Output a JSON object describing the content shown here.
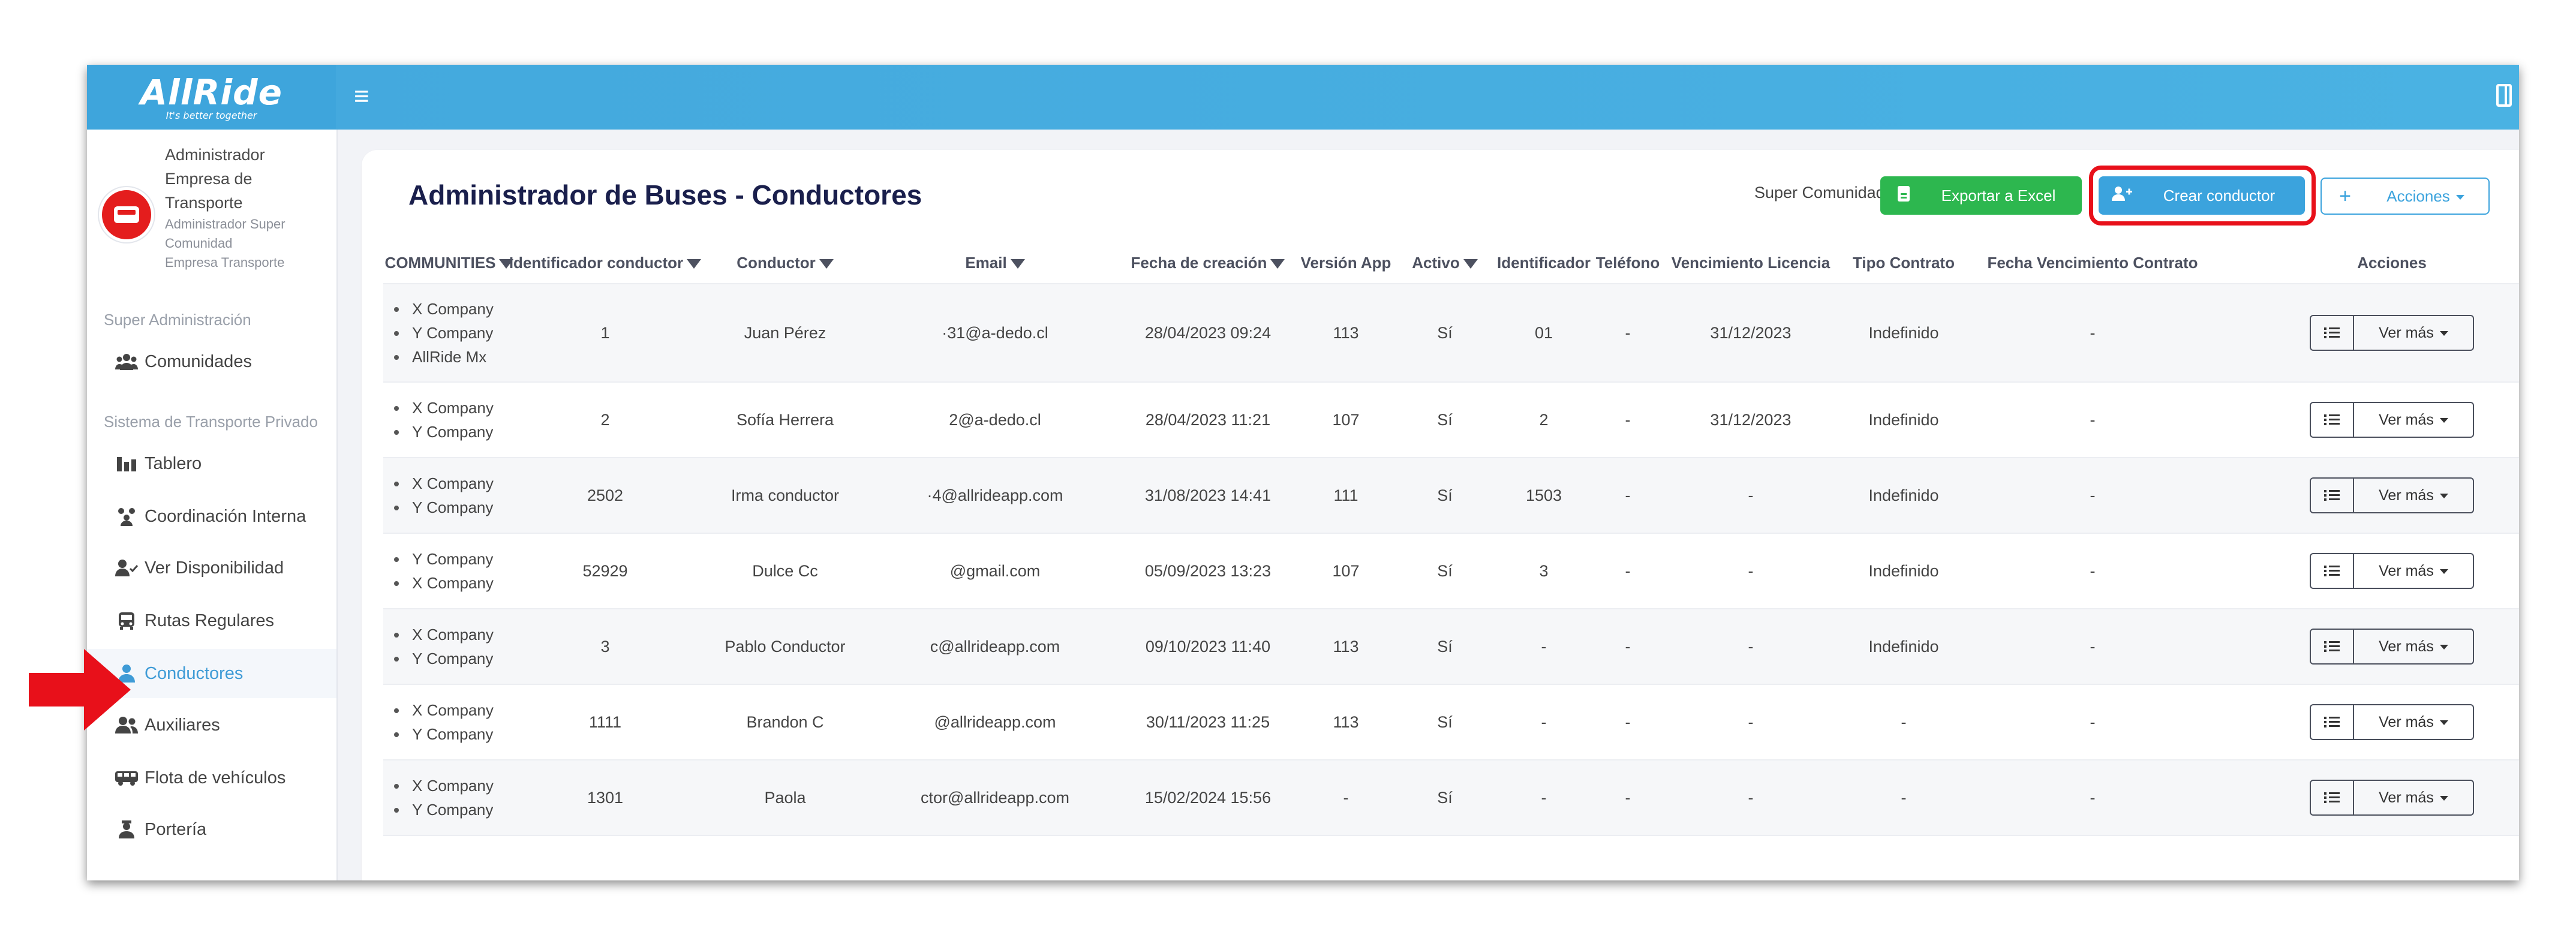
{
  "app": {
    "logo_text": "AllRide",
    "logo_tagline": "It's better together",
    "menu_icon": "hamburger-icon",
    "panel_icon": "panel-toggle-icon"
  },
  "user": {
    "role": "Administrador Empresa de Transporte",
    "subtitle_1": "Administrador Super Comunidad",
    "subtitle_2": "Empresa Transporte"
  },
  "sidebar": {
    "section_super": "Super Administración",
    "section_transport": "Sistema de Transporte Privado",
    "items": [
      {
        "label": "Comunidades",
        "icon": "users-group-icon"
      },
      {
        "label": "Tablero",
        "icon": "dashboard-icon"
      },
      {
        "label": "Coordinación Interna",
        "icon": "coordination-icon"
      },
      {
        "label": "Ver Disponibilidad",
        "icon": "user-check-icon"
      },
      {
        "label": "Rutas Regulares",
        "icon": "bus-icon"
      },
      {
        "label": "Conductores",
        "icon": "driver-icon",
        "active": true
      },
      {
        "label": "Auxiliares",
        "icon": "users-icon"
      },
      {
        "label": "Flota de vehículos",
        "icon": "vehicle-icon"
      },
      {
        "label": "Portería",
        "icon": "guard-icon"
      }
    ]
  },
  "page": {
    "title": "Administrador de Buses - Conductores",
    "header_label": "Super Comunidad",
    "export_button": "Exportar a Excel",
    "create_button": "Crear conductor",
    "actions_button": "Acciones",
    "actions_plus": "+"
  },
  "table": {
    "columns": [
      "COMMUNITIES",
      "Identificador conductor",
      "Conductor",
      "Email",
      "Fecha de creación",
      "Versión App",
      "Activo",
      "Identificador",
      "Teléfono",
      "Vencimiento Licencia",
      "Tipo Contrato",
      "Fecha Vencimiento Contrato",
      "Acciones"
    ],
    "row_action_label": "Ver más",
    "rows": [
      {
        "communities": [
          "X Company",
          "Y Company",
          "AllRide Mx"
        ],
        "id_conductor": "1",
        "conductor": "Juan Pérez",
        "email": "·31@a-dedo.cl",
        "fecha": "28/04/2023 09:24",
        "version": "113",
        "activo": "Sí",
        "identificador": "01",
        "telefono": "-",
        "licencia": "31/12/2023",
        "contrato": "Indefinido",
        "venc_contrato": "-"
      },
      {
        "communities": [
          "X Company",
          "Y Company"
        ],
        "id_conductor": "2",
        "conductor": "Sofía Herrera",
        "email": "2@a-dedo.cl",
        "fecha": "28/04/2023 11:21",
        "version": "107",
        "activo": "Sí",
        "identificador": "2",
        "telefono": "-",
        "licencia": "31/12/2023",
        "contrato": "Indefinido",
        "venc_contrato": "-"
      },
      {
        "communities": [
          "X Company",
          "Y Company"
        ],
        "id_conductor": "2502",
        "conductor": "Irma conductor",
        "email": "·4@allrideapp.com",
        "fecha": "31/08/2023 14:41",
        "version": "111",
        "activo": "Sí",
        "identificador": "1503",
        "telefono": "-",
        "licencia": "-",
        "contrato": "Indefinido",
        "venc_contrato": "-"
      },
      {
        "communities": [
          "Y Company",
          "X Company"
        ],
        "id_conductor": "52929",
        "conductor": "Dulce Cc",
        "email": "@gmail.com",
        "fecha": "05/09/2023 13:23",
        "version": "107",
        "activo": "Sí",
        "identificador": "3",
        "telefono": "-",
        "licencia": "-",
        "contrato": "Indefinido",
        "venc_contrato": "-"
      },
      {
        "communities": [
          "X Company",
          "Y Company"
        ],
        "id_conductor": "3",
        "conductor": "Pablo Conductor",
        "email": "c@allrideapp.com",
        "fecha": "09/10/2023 11:40",
        "version": "113",
        "activo": "Sí",
        "identificador": "-",
        "telefono": "-",
        "licencia": "-",
        "contrato": "Indefinido",
        "venc_contrato": "-"
      },
      {
        "communities": [
          "X Company",
          "Y Company"
        ],
        "id_conductor": "1111",
        "conductor": "Brandon C",
        "email": "@allrideapp.com",
        "fecha": "30/11/2023 11:25",
        "version": "113",
        "activo": "Sí",
        "identificador": "-",
        "telefono": "-",
        "licencia": "-",
        "contrato": "-",
        "venc_contrato": "-"
      },
      {
        "communities": [
          "X Company",
          "Y Company"
        ],
        "id_conductor": "1301",
        "conductor": "Paola",
        "email": "ctor@allrideapp.com",
        "fecha": "15/02/2024 15:56",
        "version": "-",
        "activo": "Sí",
        "identificador": "-",
        "telefono": "-",
        "licencia": "-",
        "contrato": "-",
        "venc_contrato": "-"
      }
    ]
  },
  "colors": {
    "topbar": "#43a8dd",
    "excel_green": "#2db74f",
    "create_blue": "#3ba3dd",
    "highlight_red": "#e8101a",
    "title_navy": "#1a1f4c"
  }
}
